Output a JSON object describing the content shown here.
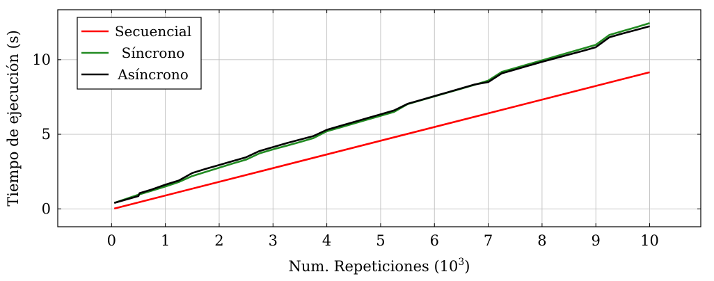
{
  "chart_data": {
    "type": "line",
    "title": "",
    "xlabel": "Num. Repeticiones (10",
    "xlabel_sup": "3",
    "xlabel_close": ")",
    "ylabel": "Tiempo de ejecución (s)",
    "xlim": [
      -1,
      10.95
    ],
    "ylim": [
      -1.2,
      13.35
    ],
    "xticks": [
      "0",
      "1",
      "2",
      "3",
      "4",
      "5",
      "6",
      "7",
      "8",
      "9",
      "10"
    ],
    "xtick_values": [
      0,
      1,
      2,
      3,
      4,
      5,
      6,
      7,
      8,
      9,
      10
    ],
    "yticks": [
      "0",
      "5",
      "10"
    ],
    "ytick_values": [
      0,
      5,
      10
    ],
    "grid": true,
    "legend_position": "top-left",
    "series": [
      {
        "name": "Secuencial",
        "color": "#ff0000",
        "x": [
          0.05,
          10
        ],
        "y": [
          0.02,
          9.16
        ]
      },
      {
        "name": "Síncrono",
        "color": "#228b22",
        "x": [
          0.05,
          0.5,
          0.75,
          1.0,
          1.25,
          1.5,
          1.75,
          2.0,
          2.25,
          2.5,
          2.75,
          3.0,
          3.25,
          3.5,
          3.75,
          4.0,
          4.25,
          4.5,
          4.75,
          5.0,
          5.25,
          5.5,
          5.75,
          6.0,
          6.25,
          6.5,
          6.75,
          7.0,
          7.25,
          7.5,
          7.75,
          8.0,
          8.25,
          8.5,
          8.75,
          9.0,
          9.25,
          9.5,
          9.75,
          10.0
        ],
        "y": [
          0.4,
          0.95,
          1.22,
          1.5,
          1.8,
          2.2,
          2.48,
          2.76,
          3.04,
          3.3,
          3.72,
          3.99,
          4.23,
          4.48,
          4.74,
          5.2,
          5.46,
          5.72,
          5.98,
          6.24,
          6.5,
          7.02,
          7.28,
          7.54,
          7.8,
          8.06,
          8.32,
          8.6,
          9.18,
          9.44,
          9.7,
          9.96,
          10.22,
          10.48,
          10.74,
          11.0,
          11.66,
          11.92,
          12.18,
          12.45
        ]
      },
      {
        "name": "Asíncrono",
        "color": "#000000",
        "x": [
          0.05,
          0.5,
          0.52,
          0.75,
          1.0,
          1.25,
          1.5,
          1.75,
          2.0,
          2.25,
          2.5,
          2.75,
          3.0,
          3.25,
          3.5,
          3.75,
          4.0,
          4.25,
          4.5,
          4.75,
          5.0,
          5.25,
          5.5,
          5.75,
          6.0,
          6.25,
          6.5,
          6.75,
          7.0,
          7.25,
          7.5,
          7.75,
          8.0,
          8.25,
          8.5,
          8.75,
          9.0,
          9.25,
          9.5,
          9.75,
          10.0
        ],
        "y": [
          0.4,
          0.86,
          1.05,
          1.3,
          1.62,
          1.9,
          2.4,
          2.68,
          2.94,
          3.2,
          3.46,
          3.88,
          4.14,
          4.4,
          4.64,
          4.88,
          5.3,
          5.56,
          5.82,
          6.08,
          6.34,
          6.6,
          7.04,
          7.3,
          7.56,
          7.82,
          8.08,
          8.34,
          8.5,
          9.08,
          9.34,
          9.6,
          9.86,
          10.1,
          10.34,
          10.58,
          10.84,
          11.5,
          11.76,
          12.0,
          12.24
        ]
      }
    ]
  }
}
